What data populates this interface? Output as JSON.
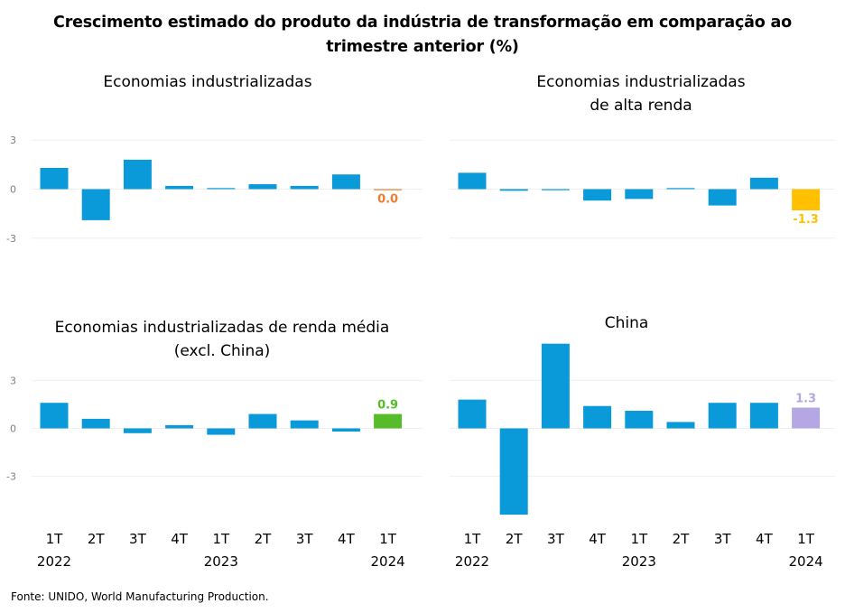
{
  "title_lines": [
    "Crescimento estimado do produto da indústria de transformação em comparação ao",
    "trimestre anterior (%)"
  ],
  "footnote": "Fonte: UNIDO, World Manufacturing Production.",
  "colors": {
    "bar": "#0a9ad9",
    "grid": "#efefef",
    "tick": "#7f7f7f"
  },
  "chart_data": [
    {
      "type": "bar",
      "title": "Economias industrializadas",
      "title_lines": [
        "Economias industrializadas"
      ],
      "categories": [
        "1T",
        "2T",
        "3T",
        "4T",
        "1T",
        "2T",
        "3T",
        "4T",
        "1T"
      ],
      "year_labels": [
        "2022",
        "",
        "",
        "",
        "2023",
        "",
        "",
        "",
        "2024"
      ],
      "values": [
        1.3,
        -1.9,
        1.8,
        0.2,
        0.05,
        0.3,
        0.2,
        0.9,
        -0.03
      ],
      "highlight": {
        "index": 8,
        "label": "0.0",
        "color": "#ed7d31"
      },
      "yticks": [
        "3",
        "0",
        "-3"
      ],
      "ylim": [
        -3,
        3
      ],
      "show_x_labels": false
    },
    {
      "type": "bar",
      "title": "Economias industrializadas de alta renda",
      "title_lines": [
        "Economias industrializadas",
        "de alta renda"
      ],
      "categories": [
        "1T",
        "2T",
        "3T",
        "4T",
        "1T",
        "2T",
        "3T",
        "4T",
        "1T"
      ],
      "year_labels": [
        "2022",
        "",
        "",
        "",
        "2023",
        "",
        "",
        "",
        "2024"
      ],
      "values": [
        1.0,
        -0.1,
        -0.05,
        -0.7,
        -0.6,
        0.05,
        -1.0,
        0.7,
        -1.3
      ],
      "highlight": {
        "index": 8,
        "label": "-1.3",
        "color": "#ffc000"
      },
      "yticks": [
        "3",
        "0",
        "-3"
      ],
      "ylim": [
        -3,
        3
      ],
      "show_x_labels": false
    },
    {
      "type": "bar",
      "title": "Economias industrializadas de renda média (excl. China)",
      "title_lines": [
        "Economias industrializadas de renda média",
        "(excl. China)"
      ],
      "categories": [
        "1T",
        "2T",
        "3T",
        "4T",
        "1T",
        "2T",
        "3T",
        "4T",
        "1T"
      ],
      "year_labels": [
        "2022",
        "",
        "",
        "",
        "2023",
        "",
        "",
        "",
        "2024"
      ],
      "values": [
        1.6,
        0.6,
        -0.3,
        0.2,
        -0.4,
        0.9,
        0.5,
        -0.2,
        0.9
      ],
      "highlight": {
        "index": 8,
        "label": "0.9",
        "color": "#57bc2a"
      },
      "yticks": [
        "3",
        "0",
        "-3"
      ],
      "ylim": [
        -6,
        5.5
      ],
      "show_x_labels": true
    },
    {
      "type": "bar",
      "title": "China",
      "title_lines": [
        "China"
      ],
      "categories": [
        "1T",
        "2T",
        "3T",
        "4T",
        "1T",
        "2T",
        "3T",
        "4T",
        "1T"
      ],
      "year_labels": [
        "2022",
        "",
        "",
        "",
        "2023",
        "",
        "",
        "",
        "2024"
      ],
      "values": [
        1.8,
        -5.4,
        5.3,
        1.4,
        1.1,
        0.4,
        1.6,
        1.6,
        1.3
      ],
      "highlight": {
        "index": 8,
        "label": "1.3",
        "color": "#b4a7e3"
      },
      "yticks": [
        "",
        "",
        ""
      ],
      "ylim": [
        -6,
        5.5
      ],
      "show_x_labels": true
    }
  ]
}
